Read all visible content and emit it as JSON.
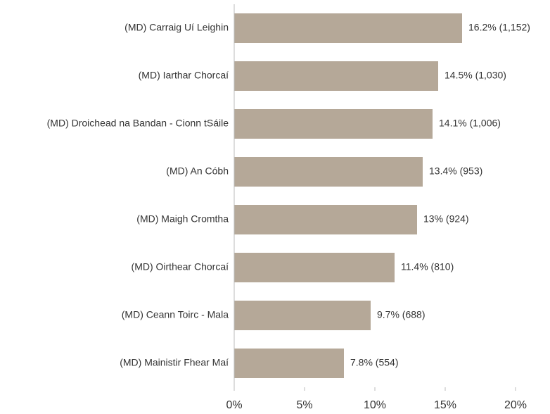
{
  "chart_data": {
    "type": "hbar",
    "categories": [
      "(MD) Carraig Uí Leighin",
      "(MD) Iarthar Chorcaí",
      "(MD) Droichead na Bandan - Cionn tSáile",
      "(MD) An Cóbh",
      "(MD) Maigh Cromtha",
      "(MD) Oirthear Chorcaí",
      "(MD) Ceann Toirc - Mala",
      "(MD) Mainistir Fhear Maí"
    ],
    "values": [
      16.2,
      14.5,
      14.1,
      13.4,
      13,
      11.4,
      9.7,
      7.8
    ],
    "value_labels": [
      "16.2% (1,152)",
      "14.5% (1,030)",
      "14.1% (1,006)",
      "13.4% (953)",
      "13% (924)",
      "11.4% (810)",
      "9.7% (688)",
      "7.8% (554)"
    ],
    "color": "#b5a898",
    "xlim": [
      0,
      20
    ],
    "xticks": [
      {
        "value": 0,
        "label": "0%"
      },
      {
        "value": 5,
        "label": "5%"
      },
      {
        "value": 10,
        "label": "10%"
      },
      {
        "value": 15,
        "label": "15%"
      },
      {
        "value": 20,
        "label": "20%"
      }
    ]
  }
}
